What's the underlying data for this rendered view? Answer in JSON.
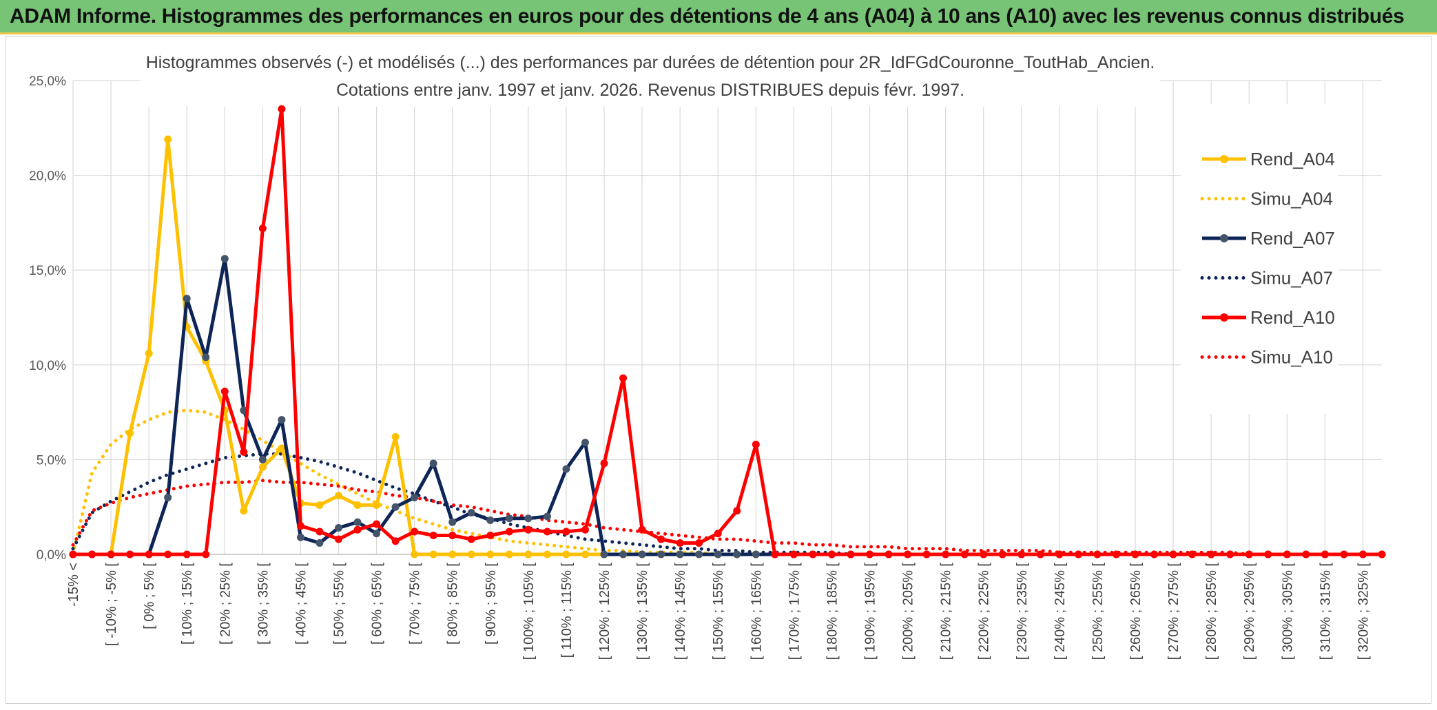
{
  "banner": {
    "title": "ADAM Informe. Histogrammes des performances en euros pour des détentions de 4 ans (A04) à 10 ans (A10) avec les revenus connus distribués"
  },
  "chart_data": {
    "type": "line",
    "title": "Histogrammes observés (-) et modélisés (...) des performances par durées de détention pour 2R_IdFGdCouronne_ToutHab_Ancien.",
    "subtitle": "Cotations entre janv. 1997 et janv. 2026. Revenus DISTRIBUES depuis févr. 1997.",
    "xlabel": "",
    "ylabel": "",
    "ylim": [
      0,
      25
    ],
    "yticks": [
      "0,0%",
      "5,0%",
      "10,0%",
      "15,0%",
      "20,0%",
      "25,0%"
    ],
    "x_tick_labels": [
      "-15% <",
      "[ -10% ; -5% [",
      "[ 0% ; 5% [",
      "[ 10% ; 15% [",
      "[ 20% ; 25% [",
      "[ 30% ; 35% [",
      "[ 40% ; 45% [",
      "[ 50% ; 55% [",
      "[ 60% ; 65% [",
      "[ 70% ; 75% [",
      "[ 80% ; 85% [",
      "[ 90% ; 95% [",
      "[ 100% ; 105% [",
      "[ 110% ; 115% [",
      "[ 120% ; 125% [",
      "[ 130% ; 135% [",
      "[ 140% ; 145% [",
      "[ 150% ; 155% [",
      "[ 160% ; 165% [",
      "[ 170% ; 175% [",
      "[ 180% ; 185% [",
      "[ 190% ; 195% [",
      "[ 200% ; 205% [",
      "[ 210% ; 215% [",
      "[ 220% ; 225% [",
      "[ 230% ; 235% [",
      "[ 240% ; 245% [",
      "[ 250% ; 255% [",
      "[ 260% ; 265% [",
      "[ 270% ; 275% [",
      "[ 280% ; 285% [",
      "[ 290% ; 295% [",
      "[ 300% ; 305% [",
      "[ 310% ; 315% [",
      "[ 320% ; 325% ["
    ],
    "categories_count": 70,
    "grid": true,
    "legend_position": "right",
    "series": [
      {
        "name": "Rend_A04",
        "style": "solid",
        "color": "#ffc000",
        "values": [
          0,
          0,
          0,
          6.4,
          10.6,
          21.9,
          12.0,
          10.2,
          7.6,
          2.3,
          4.6,
          5.6,
          2.7,
          2.6,
          3.1,
          2.6,
          2.6,
          6.2,
          0,
          0,
          0,
          0,
          0,
          0,
          0,
          0,
          0,
          0,
          0,
          0,
          0,
          0,
          0,
          0,
          0,
          0,
          0,
          0,
          0,
          0,
          0,
          0,
          0,
          0,
          0,
          0,
          0,
          0,
          0,
          0,
          0,
          0,
          0,
          0,
          0,
          0,
          0,
          0,
          0,
          0,
          0,
          0,
          0,
          0,
          0,
          0,
          0,
          0,
          0,
          0
        ]
      },
      {
        "name": "Simu_A04",
        "style": "dotted",
        "color": "#ffc000",
        "values": [
          0,
          4.3,
          5.8,
          6.6,
          7.1,
          7.5,
          7.6,
          7.5,
          7.1,
          6.6,
          6.0,
          5.4,
          4.8,
          4.2,
          3.7,
          3.2,
          2.7,
          2.3,
          1.9,
          1.6,
          1.3,
          1.1,
          0.9,
          0.7,
          0.6,
          0.5,
          0.4,
          0.3,
          0.2,
          0.2,
          0.1,
          0.1,
          0.1,
          0.1,
          0,
          0,
          0,
          0,
          0,
          0,
          0,
          0,
          0,
          0,
          0,
          0,
          0,
          0,
          0,
          0,
          0,
          0,
          0,
          0,
          0,
          0,
          0,
          0,
          0,
          0,
          0,
          0,
          0,
          0,
          0,
          0,
          0,
          0,
          0,
          0
        ]
      },
      {
        "name": "Rend_A07",
        "style": "solid",
        "color": "#0d2557",
        "values": [
          0,
          0,
          0,
          0,
          0,
          3.0,
          13.5,
          10.4,
          15.6,
          7.6,
          5.0,
          7.1,
          0.9,
          0.6,
          1.4,
          1.7,
          1.1,
          2.5,
          3.0,
          4.8,
          1.7,
          2.2,
          1.8,
          1.9,
          1.9,
          2.0,
          4.5,
          5.9,
          0,
          0,
          0,
          0,
          0,
          0,
          0,
          0,
          0,
          0,
          0,
          0,
          0,
          0,
          0,
          0,
          0,
          0,
          0,
          0,
          0,
          0,
          0,
          0,
          0,
          0,
          0,
          0,
          0,
          0,
          0,
          0,
          0,
          0,
          0,
          0,
          0,
          0,
          0,
          0,
          0,
          0
        ]
      },
      {
        "name": "Simu_A07",
        "style": "dotted",
        "color": "#0d2557",
        "values": [
          0.3,
          2.2,
          2.8,
          3.3,
          3.8,
          4.2,
          4.5,
          4.8,
          5.1,
          5.2,
          5.3,
          5.3,
          5.1,
          4.9,
          4.6,
          4.3,
          3.9,
          3.5,
          3.2,
          2.8,
          2.5,
          2.1,
          1.9,
          1.6,
          1.4,
          1.2,
          1.0,
          0.8,
          0.7,
          0.6,
          0.5,
          0.4,
          0.3,
          0.3,
          0.2,
          0.2,
          0.1,
          0.1,
          0.1,
          0.1,
          0.1,
          0,
          0,
          0,
          0,
          0,
          0,
          0,
          0,
          0,
          0,
          0,
          0,
          0,
          0,
          0,
          0,
          0,
          0,
          0,
          0,
          0,
          0,
          0,
          0,
          0,
          0,
          0,
          0,
          0
        ]
      },
      {
        "name": "Rend_A10",
        "style": "solid",
        "color": "#ff0000",
        "values": [
          0,
          0,
          0,
          0,
          0,
          0,
          0,
          0,
          8.6,
          5.4,
          17.2,
          23.5,
          1.5,
          1.2,
          0.8,
          1.3,
          1.6,
          0.7,
          1.2,
          1.0,
          1.0,
          0.8,
          1.0,
          1.2,
          1.3,
          1.2,
          1.2,
          1.3,
          4.8,
          9.3,
          1.3,
          0.8,
          0.6,
          0.6,
          1.1,
          2.3,
          5.8,
          0,
          0,
          0,
          0,
          0,
          0,
          0,
          0,
          0,
          0,
          0,
          0,
          0,
          0,
          0,
          0,
          0,
          0,
          0,
          0,
          0,
          0,
          0,
          0,
          0,
          0,
          0,
          0,
          0,
          0,
          0,
          0,
          0
        ]
      },
      {
        "name": "Simu_A10",
        "style": "dotted",
        "color": "#ff0000",
        "values": [
          0.5,
          2.3,
          2.7,
          3.0,
          3.2,
          3.4,
          3.6,
          3.7,
          3.8,
          3.8,
          3.9,
          3.8,
          3.8,
          3.7,
          3.6,
          3.4,
          3.3,
          3.1,
          3.0,
          2.8,
          2.6,
          2.5,
          2.3,
          2.1,
          2.0,
          1.8,
          1.7,
          1.6,
          1.4,
          1.3,
          1.2,
          1.1,
          1.0,
          0.9,
          0.8,
          0.8,
          0.7,
          0.6,
          0.6,
          0.5,
          0.5,
          0.4,
          0.4,
          0.4,
          0.3,
          0.3,
          0.3,
          0.2,
          0.2,
          0.2,
          0.2,
          0.2,
          0.1,
          0.1,
          0.1,
          0.1,
          0.1,
          0.1,
          0.1,
          0.1,
          0.1,
          0.1,
          0,
          0,
          0,
          0,
          0,
          0,
          0,
          0
        ]
      }
    ]
  }
}
